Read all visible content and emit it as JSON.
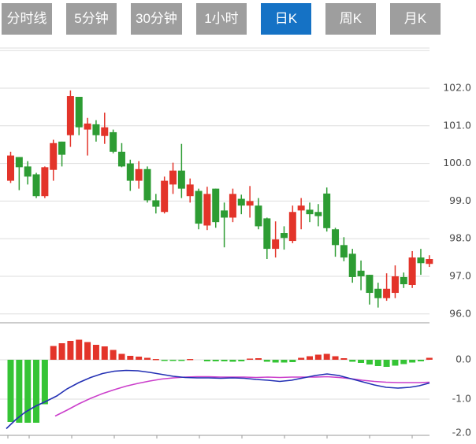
{
  "toolbar": {
    "tabs": [
      {
        "label": "分时线",
        "active": false
      },
      {
        "label": "5分钟",
        "active": false
      },
      {
        "label": "30分钟",
        "active": false
      },
      {
        "label": "1小时",
        "active": false
      },
      {
        "label": "日K",
        "active": true
      },
      {
        "label": "周K",
        "active": false
      },
      {
        "label": "月K",
        "active": false
      }
    ],
    "active_color": "#1572c5",
    "inactive_color": "#9e9e9e"
  },
  "chart_data": {
    "type": "candlestick_with_macd",
    "price_panel": {
      "y_axis_ticks": [
        {
          "label": "102.0",
          "price": 102.0
        },
        {
          "label": "101.0",
          "price": 101.0
        },
        {
          "label": "100.0",
          "price": 100.0
        },
        {
          "label": "99.0",
          "price": 99.0
        },
        {
          "label": "98.0",
          "price": 98.0
        },
        {
          "label": "97.0",
          "price": 97.0
        },
        {
          "label": "96.0",
          "price": 96.0
        }
      ],
      "unlabeled_top_gridline_price": 103.0,
      "ohlc_order": [
        "open",
        "high",
        "low",
        "close"
      ],
      "candles": [
        [
          99.54,
          100.31,
          99.48,
          100.21
        ],
        [
          100.17,
          100.17,
          99.29,
          99.9
        ],
        [
          99.92,
          100.06,
          99.44,
          99.65
        ],
        [
          99.71,
          99.75,
          99.08,
          99.13
        ],
        [
          99.13,
          99.92,
          99.08,
          99.9
        ],
        [
          99.83,
          100.63,
          99.54,
          100.54
        ],
        [
          100.58,
          100.58,
          99.92,
          100.23
        ],
        [
          100.75,
          101.94,
          100.44,
          101.79
        ],
        [
          101.77,
          101.77,
          100.75,
          100.96
        ],
        [
          100.9,
          101.21,
          100.21,
          101.06
        ],
        [
          101.04,
          101.15,
          100.58,
          100.75
        ],
        [
          100.73,
          101.35,
          100.52,
          100.96
        ],
        [
          100.83,
          100.9,
          100.27,
          100.31
        ],
        [
          100.31,
          100.54,
          99.9,
          99.92
        ],
        [
          100.0,
          100.1,
          99.27,
          99.54
        ],
        [
          99.54,
          100.06,
          99.33,
          99.85
        ],
        [
          99.85,
          99.92,
          98.96,
          99.02
        ],
        [
          99.02,
          99.19,
          98.67,
          98.85
        ],
        [
          98.71,
          99.65,
          98.67,
          99.54
        ],
        [
          99.44,
          100.02,
          99.19,
          99.81
        ],
        [
          99.81,
          100.52,
          99.08,
          99.33
        ],
        [
          99.13,
          99.6,
          98.96,
          99.44
        ],
        [
          99.27,
          99.33,
          98.25,
          98.4
        ],
        [
          98.35,
          99.38,
          98.23,
          99.19
        ],
        [
          99.33,
          99.33,
          98.29,
          98.44
        ],
        [
          98.75,
          98.96,
          97.77,
          98.56
        ],
        [
          98.56,
          99.33,
          98.44,
          99.19
        ],
        [
          99.06,
          99.17,
          98.65,
          98.88
        ],
        [
          98.88,
          99.4,
          98.56,
          99.0
        ],
        [
          98.88,
          99.08,
          98.25,
          98.33
        ],
        [
          98.54,
          98.56,
          97.46,
          97.73
        ],
        [
          97.73,
          98.46,
          97.5,
          97.98
        ],
        [
          98.15,
          98.33,
          97.71,
          98.02
        ],
        [
          97.94,
          98.88,
          97.88,
          98.71
        ],
        [
          98.75,
          99.08,
          98.25,
          98.88
        ],
        [
          98.77,
          98.96,
          98.44,
          98.65
        ],
        [
          98.71,
          98.92,
          98.33,
          98.6
        ],
        [
          99.2,
          99.36,
          98.19,
          98.28
        ],
        [
          98.25,
          98.29,
          97.52,
          97.83
        ],
        [
          97.83,
          98.04,
          97.4,
          97.5
        ],
        [
          97.6,
          97.73,
          96.83,
          96.98
        ],
        [
          97.15,
          97.42,
          96.63,
          97.0
        ],
        [
          97.04,
          97.04,
          96.25,
          96.56
        ],
        [
          96.67,
          96.83,
          96.17,
          96.42
        ],
        [
          96.42,
          97.08,
          96.35,
          96.67
        ],
        [
          96.56,
          97.29,
          96.42,
          97.0
        ],
        [
          96.98,
          97.1,
          96.69,
          96.79
        ],
        [
          96.77,
          97.67,
          96.69,
          97.5
        ],
        [
          97.5,
          97.73,
          97.04,
          97.35
        ],
        [
          97.33,
          97.56,
          97.25,
          97.46
        ]
      ]
    },
    "macd_panel": {
      "y_axis_ticks": [
        {
          "label": "0.0",
          "value": 0.0
        },
        {
          "label": "-1.0",
          "value": -1.0
        },
        {
          "label": "-2.0",
          "value": -2.0
        }
      ],
      "histogram": [
        -1.58,
        -1.6,
        -1.6,
        -1.6,
        -1.13,
        0.35,
        0.42,
        0.48,
        0.51,
        0.45,
        0.38,
        0.34,
        0.25,
        0.15,
        0.1,
        0.08,
        0.05,
        0.02,
        -0.03,
        -0.03,
        -0.02,
        0.02,
        0.0,
        -0.04,
        -0.04,
        -0.04,
        -0.05,
        -0.04,
        0.03,
        0.04,
        -0.05,
        -0.07,
        -0.07,
        -0.06,
        0.05,
        0.09,
        0.13,
        0.15,
        0.09,
        0.04,
        -0.05,
        -0.08,
        -0.12,
        -0.16,
        -0.18,
        -0.15,
        -0.11,
        -0.07,
        -0.04,
        0.05
      ],
      "dif_line": [
        [
          8,
          -1.75
        ],
        [
          20,
          -1.52
        ],
        [
          32,
          -1.33
        ],
        [
          45,
          -1.18
        ],
        [
          58,
          -1.06
        ],
        [
          72,
          -0.92
        ],
        [
          85,
          -0.74
        ],
        [
          100,
          -0.58
        ],
        [
          115,
          -0.45
        ],
        [
          130,
          -0.35
        ],
        [
          145,
          -0.29
        ],
        [
          160,
          -0.27
        ],
        [
          175,
          -0.28
        ],
        [
          190,
          -0.32
        ],
        [
          205,
          -0.37
        ],
        [
          220,
          -0.42
        ],
        [
          235,
          -0.45
        ],
        [
          250,
          -0.46
        ],
        [
          265,
          -0.46
        ],
        [
          280,
          -0.47
        ],
        [
          295,
          -0.46
        ],
        [
          310,
          -0.47
        ],
        [
          325,
          -0.5
        ],
        [
          340,
          -0.52
        ],
        [
          355,
          -0.55
        ],
        [
          370,
          -0.52
        ],
        [
          385,
          -0.46
        ],
        [
          400,
          -0.4
        ],
        [
          415,
          -0.36
        ],
        [
          430,
          -0.4
        ],
        [
          445,
          -0.48
        ],
        [
          460,
          -0.56
        ],
        [
          475,
          -0.64
        ],
        [
          490,
          -0.7
        ],
        [
          505,
          -0.72
        ],
        [
          520,
          -0.7
        ],
        [
          532,
          -0.66
        ],
        [
          545,
          -0.59
        ]
      ],
      "dea_line": [
        [
          70,
          -1.43
        ],
        [
          85,
          -1.28
        ],
        [
          100,
          -1.12
        ],
        [
          115,
          -0.98
        ],
        [
          130,
          -0.86
        ],
        [
          145,
          -0.76
        ],
        [
          160,
          -0.67
        ],
        [
          175,
          -0.6
        ],
        [
          190,
          -0.54
        ],
        [
          205,
          -0.49
        ],
        [
          220,
          -0.46
        ],
        [
          235,
          -0.44
        ],
        [
          250,
          -0.43
        ],
        [
          265,
          -0.43
        ],
        [
          280,
          -0.44
        ],
        [
          295,
          -0.44
        ],
        [
          310,
          -0.44
        ],
        [
          325,
          -0.45
        ],
        [
          340,
          -0.44
        ],
        [
          355,
          -0.45
        ],
        [
          370,
          -0.44
        ],
        [
          385,
          -0.44
        ],
        [
          400,
          -0.44
        ],
        [
          415,
          -0.43
        ],
        [
          430,
          -0.45
        ],
        [
          445,
          -0.48
        ],
        [
          460,
          -0.52
        ],
        [
          475,
          -0.55
        ],
        [
          490,
          -0.57
        ],
        [
          505,
          -0.58
        ],
        [
          520,
          -0.58
        ],
        [
          532,
          -0.58
        ],
        [
          545,
          -0.57
        ]
      ]
    },
    "x_axis_tick_positions": [
      10,
      37,
      91,
      145,
      199,
      253,
      307,
      361,
      415,
      469,
      523
    ],
    "colors": {
      "up_candle": "#e3342a",
      "down_candle": "#2d9c33",
      "macd_positive": "#e3342a",
      "macd_negative": "#35c435",
      "dif_line": "#2330b4",
      "dea_line": "#cb3fcb",
      "gridline": "#dddddd",
      "separator": "#999999",
      "axis_label": "#4a4a4a"
    }
  }
}
